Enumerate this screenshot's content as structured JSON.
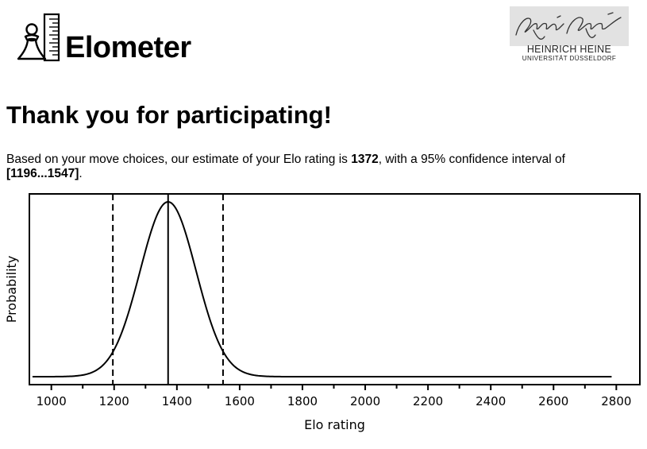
{
  "header": {
    "app_name": "Elometer",
    "logo_icon": "chess-pawn-ruler-icon",
    "university": {
      "name": "HEINRICH HEINE",
      "subname": "UNIVERSITÄT DÜSSELDORF",
      "signature_icon": "handwritten-signature-heinrich-heine"
    }
  },
  "main": {
    "title": "Thank you for participating!",
    "result": {
      "text_before": "Based on your move choices, our estimate of your Elo rating is ",
      "estimate": "1372",
      "text_middle": ", with a 95% confidence interval of ",
      "interval": "[1196...1547]",
      "text_after": "."
    }
  },
  "chart_data": {
    "type": "line",
    "xlabel": "Elo rating",
    "ylabel": "Probability",
    "xlim": [
      930,
      2875
    ],
    "xticks": [
      1000,
      1200,
      1400,
      1600,
      1800,
      2000,
      2200,
      2400,
      2600,
      2800
    ],
    "minor_xtick_step": 100,
    "yticks": [],
    "grid": false,
    "series": [
      {
        "style": "solid",
        "distribution": "normal",
        "mean": 1372,
        "sd": 89,
        "x_range": [
          940,
          2785
        ]
      }
    ],
    "markers": [
      {
        "x": 1372,
        "style": "solid"
      },
      {
        "x": 1196,
        "style": "dashed"
      },
      {
        "x": 1547,
        "style": "dashed"
      }
    ]
  }
}
